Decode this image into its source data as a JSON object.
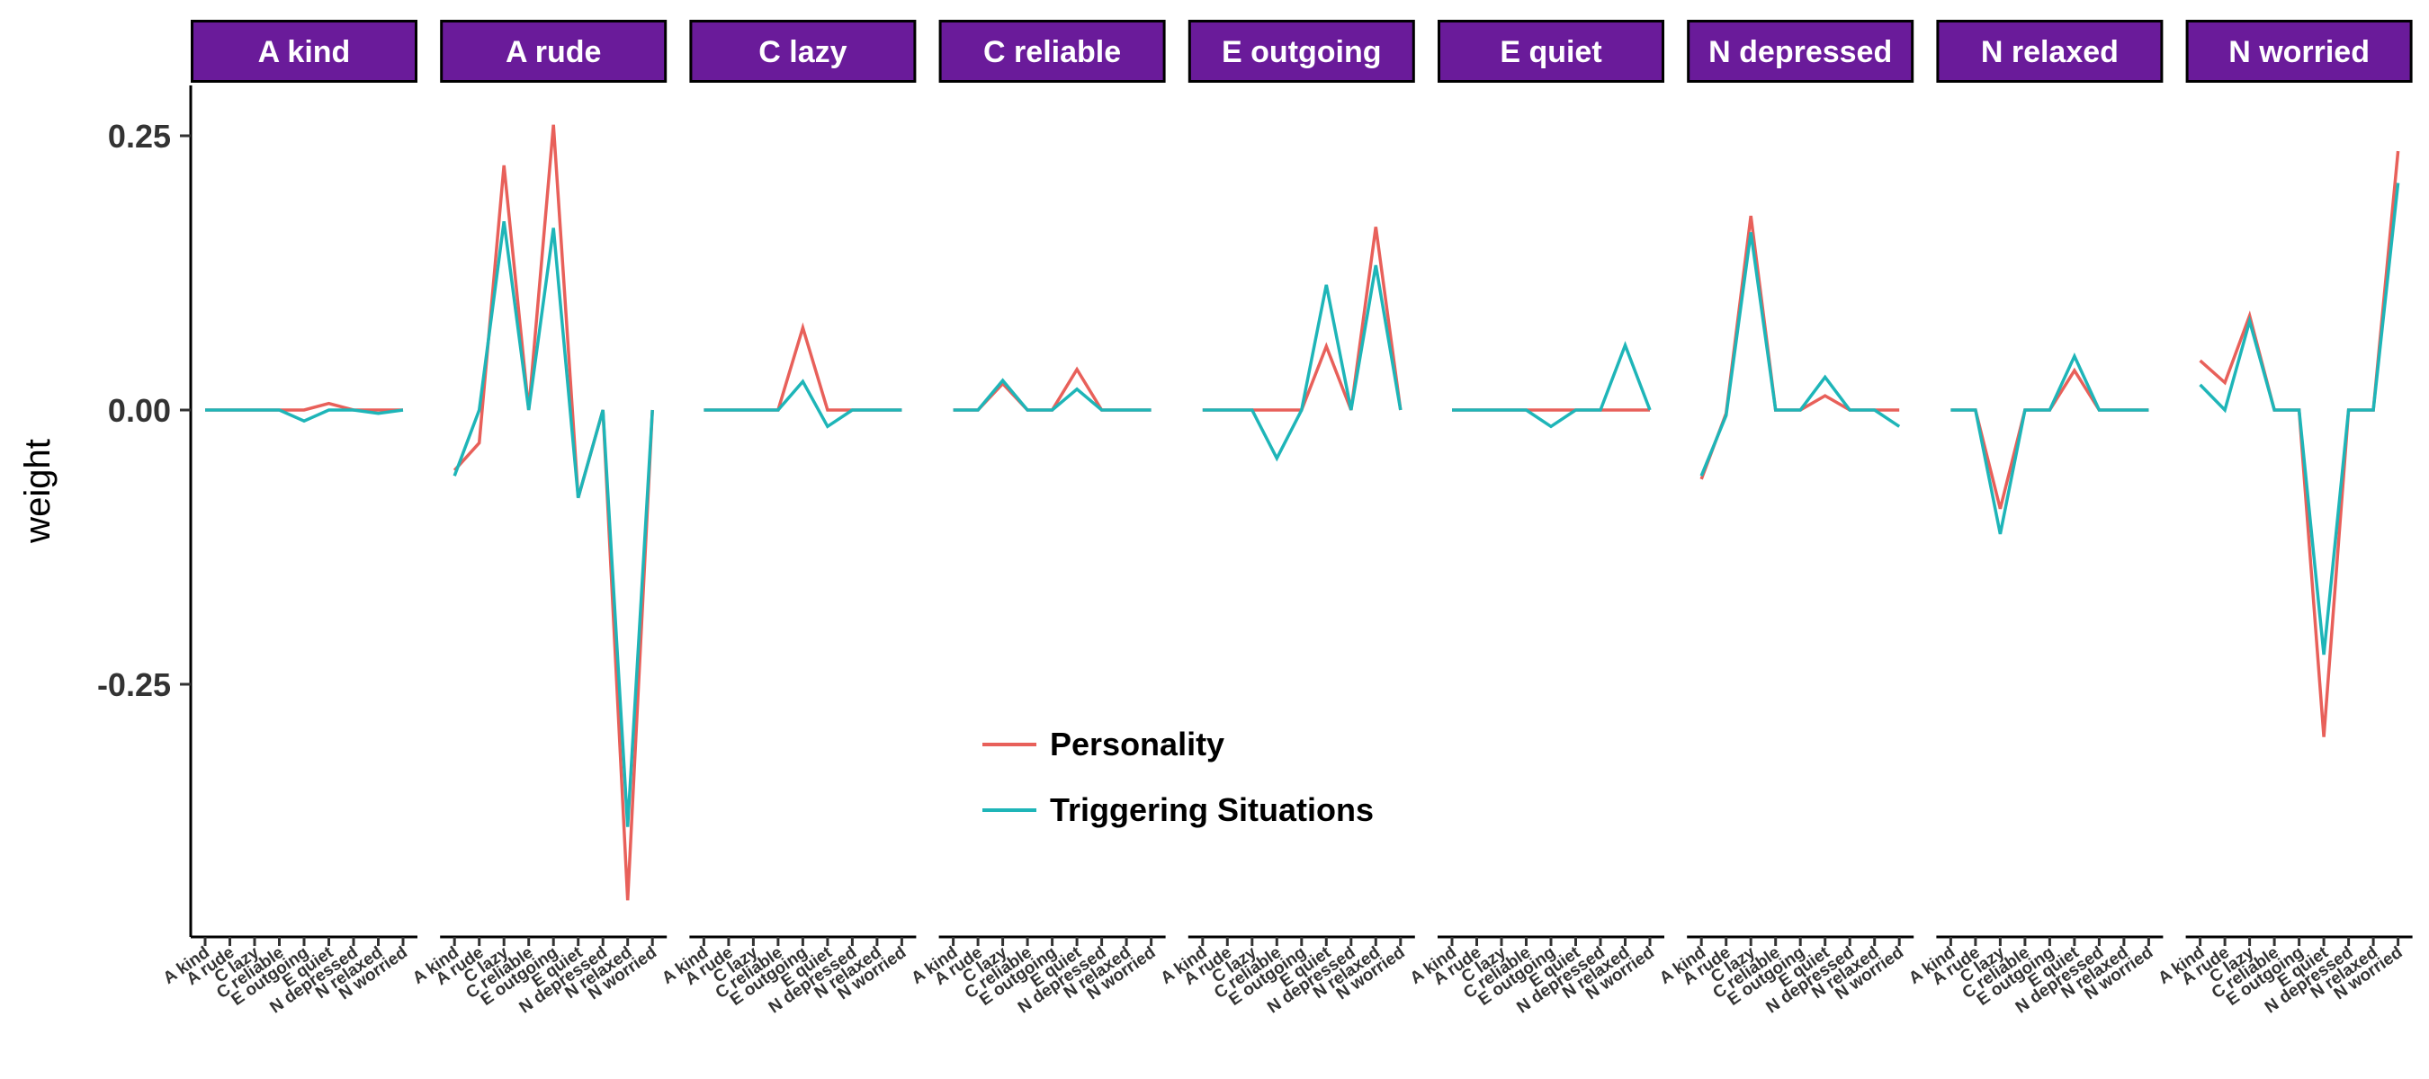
{
  "chart_data": {
    "type": "line",
    "ylabel": "weight",
    "ylim": [
      -0.48,
      0.3
    ],
    "yticks": [
      0.25,
      0.0,
      -0.25
    ],
    "ytick_labels": [
      "0.25",
      "0.00",
      "-0.25"
    ],
    "categories": [
      "A kind",
      "A rude",
      "C lazy",
      "C reliable",
      "E outgoing",
      "E quiet",
      "N depressed",
      "N relaxed",
      "N worried"
    ],
    "legend_position": "inside-bottom-center",
    "colors": {
      "strip": "#6a1b9a",
      "personality": "#e8605a",
      "triggering": "#1eb5b8"
    },
    "legend": [
      "Personality",
      "Triggering Situations"
    ],
    "panels": [
      {
        "title": "A kind",
        "series": [
          {
            "name": "Personality",
            "values": [
              0,
              0,
              0,
              0,
              0,
              0.006,
              0,
              0,
              0
            ]
          },
          {
            "name": "Triggering Situations",
            "values": [
              0,
              0,
              0,
              0,
              -0.01,
              0,
              0,
              -0.003,
              0
            ]
          }
        ]
      },
      {
        "title": "A rude",
        "series": [
          {
            "name": "Personality",
            "values": [
              -0.055,
              -0.03,
              0.223,
              0,
              0.26,
              -0.08,
              0,
              -0.447,
              0
            ]
          },
          {
            "name": "Triggering Situations",
            "values": [
              -0.06,
              0,
              0.172,
              0,
              0.166,
              -0.08,
              0,
              -0.38,
              0
            ]
          }
        ]
      },
      {
        "title": "C lazy",
        "series": [
          {
            "name": "Personality",
            "values": [
              0,
              0,
              0,
              0,
              0.075,
              0,
              0,
              0,
              0
            ]
          },
          {
            "name": "Triggering Situations",
            "values": [
              0,
              0,
              0,
              0,
              0.026,
              -0.015,
              0,
              0,
              0
            ]
          }
        ]
      },
      {
        "title": "C reliable",
        "series": [
          {
            "name": "Personality",
            "values": [
              0,
              0,
              0.024,
              0,
              0,
              0.037,
              0,
              0,
              0
            ]
          },
          {
            "name": "Triggering Situations",
            "values": [
              0,
              0,
              0.027,
              0,
              0,
              0.019,
              0,
              0,
              0
            ]
          }
        ]
      },
      {
        "title": "E outgoing",
        "series": [
          {
            "name": "Personality",
            "values": [
              0,
              0,
              0,
              0,
              0,
              0.058,
              0,
              0.167,
              0
            ]
          },
          {
            "name": "Triggering Situations",
            "values": [
              0,
              0,
              0,
              -0.044,
              0,
              0.114,
              0,
              0.132,
              0
            ]
          }
        ]
      },
      {
        "title": "E quiet",
        "series": [
          {
            "name": "Personality",
            "values": [
              0,
              0,
              0,
              0,
              0,
              0,
              0,
              0,
              0
            ]
          },
          {
            "name": "Triggering Situations",
            "values": [
              0,
              0,
              0,
              0,
              -0.015,
              0,
              0,
              0.059,
              0
            ]
          }
        ]
      },
      {
        "title": "N depressed",
        "series": [
          {
            "name": "Personality",
            "values": [
              -0.063,
              -0.003,
              0.177,
              0,
              0,
              0.013,
              0,
              0,
              0
            ]
          },
          {
            "name": "Triggering Situations",
            "values": [
              -0.06,
              -0.005,
              0.162,
              0,
              0,
              0.03,
              0,
              0,
              -0.015
            ]
          }
        ]
      },
      {
        "title": "N relaxed",
        "series": [
          {
            "name": "Personality",
            "values": [
              0,
              0,
              -0.09,
              0,
              0,
              0.036,
              0,
              0,
              0
            ]
          },
          {
            "name": "Triggering Situations",
            "values": [
              0,
              0,
              -0.113,
              0,
              0,
              0.049,
              0,
              0,
              0
            ]
          }
        ]
      },
      {
        "title": "N worried",
        "series": [
          {
            "name": "Personality",
            "values": [
              0.045,
              0.025,
              0.086,
              0,
              0,
              -0.298,
              0,
              0,
              0.236
            ]
          },
          {
            "name": "Triggering Situations",
            "values": [
              0.023,
              0,
              0.081,
              0,
              0,
              -0.223,
              0,
              0,
              0.207
            ]
          }
        ]
      }
    ]
  }
}
